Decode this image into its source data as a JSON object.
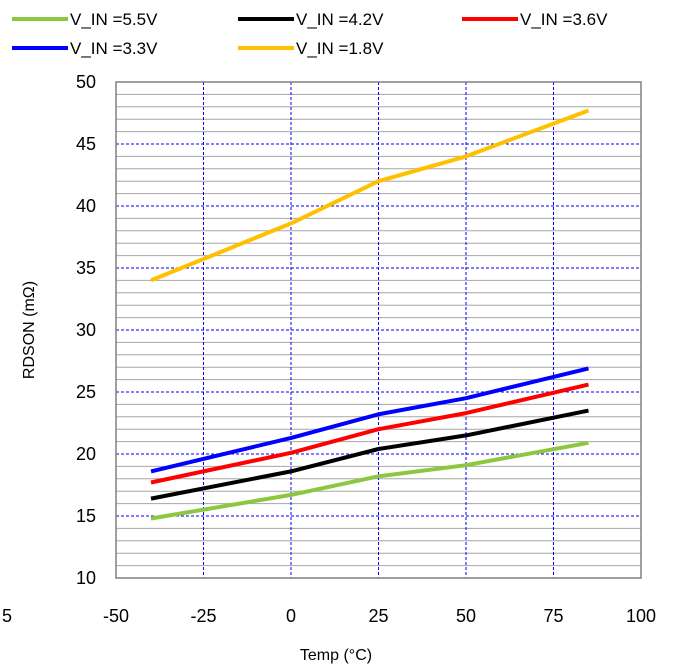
{
  "chart_data": {
    "type": "line",
    "xlabel": "Temp (°C)",
    "ylabel": "RDSON (mΩ)",
    "xlim": [
      -50,
      100
    ],
    "ylim": [
      10,
      50
    ],
    "x_ticks": [
      "-50",
      "-25",
      "0",
      "25",
      "50",
      "75",
      "100"
    ],
    "x_tick_values": [
      -50,
      -25,
      0,
      25,
      50,
      75,
      100
    ],
    "y_ticks": [
      "10",
      "15",
      "20",
      "25",
      "30",
      "35",
      "40",
      "45",
      "50"
    ],
    "y_tick_values": [
      10,
      15,
      20,
      25,
      30,
      35,
      40,
      45,
      50
    ],
    "stray_tick_label": "5",
    "grid": "major dashed blue, minor solid gray",
    "legend_position": "top",
    "x": [
      -40,
      0,
      25,
      50,
      85
    ],
    "series": [
      {
        "name": "V_IN =5.5V",
        "color": "#8DC63F",
        "values": [
          14.8,
          16.7,
          18.2,
          19.1,
          20.9
        ]
      },
      {
        "name": "V_IN =4.2V",
        "color": "#000000",
        "values": [
          16.4,
          18.6,
          20.4,
          21.5,
          23.5
        ]
      },
      {
        "name": "V_IN =3.6V",
        "color": "#FF0000",
        "values": [
          17.7,
          20.1,
          22.0,
          23.3,
          25.6
        ]
      },
      {
        "name": "V_IN =3.3V",
        "color": "#0000FF",
        "values": [
          18.6,
          21.3,
          23.2,
          24.5,
          26.9
        ]
      },
      {
        "name": "V_IN =1.8V",
        "color": "#FFC000",
        "values": [
          34.0,
          38.6,
          42.0,
          44.0,
          47.7
        ]
      }
    ]
  }
}
